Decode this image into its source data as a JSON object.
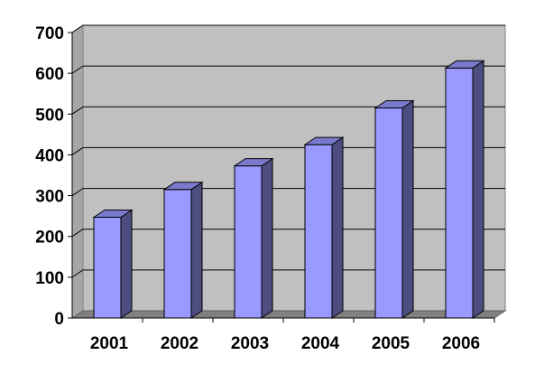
{
  "chart_data": {
    "type": "bar",
    "style": "3d-column",
    "categories": [
      "2001",
      "2002",
      "2003",
      "2004",
      "2005",
      "2006"
    ],
    "values": [
      247,
      315,
      373,
      425,
      515,
      613
    ],
    "title": "",
    "xlabel": "",
    "ylabel": "",
    "ylim": [
      0,
      700
    ],
    "yticks": [
      0,
      100,
      200,
      300,
      400,
      500,
      600,
      700
    ],
    "grid": true,
    "legend": "none",
    "colors": {
      "bar_front": "#9999ff",
      "bar_side": "#4d4d80",
      "bar_top": "#7a7acc",
      "plot_back": "#c0c0c0",
      "plot_side": "#a6a6a6",
      "floor": "#808080",
      "gridline": "#000000"
    }
  }
}
